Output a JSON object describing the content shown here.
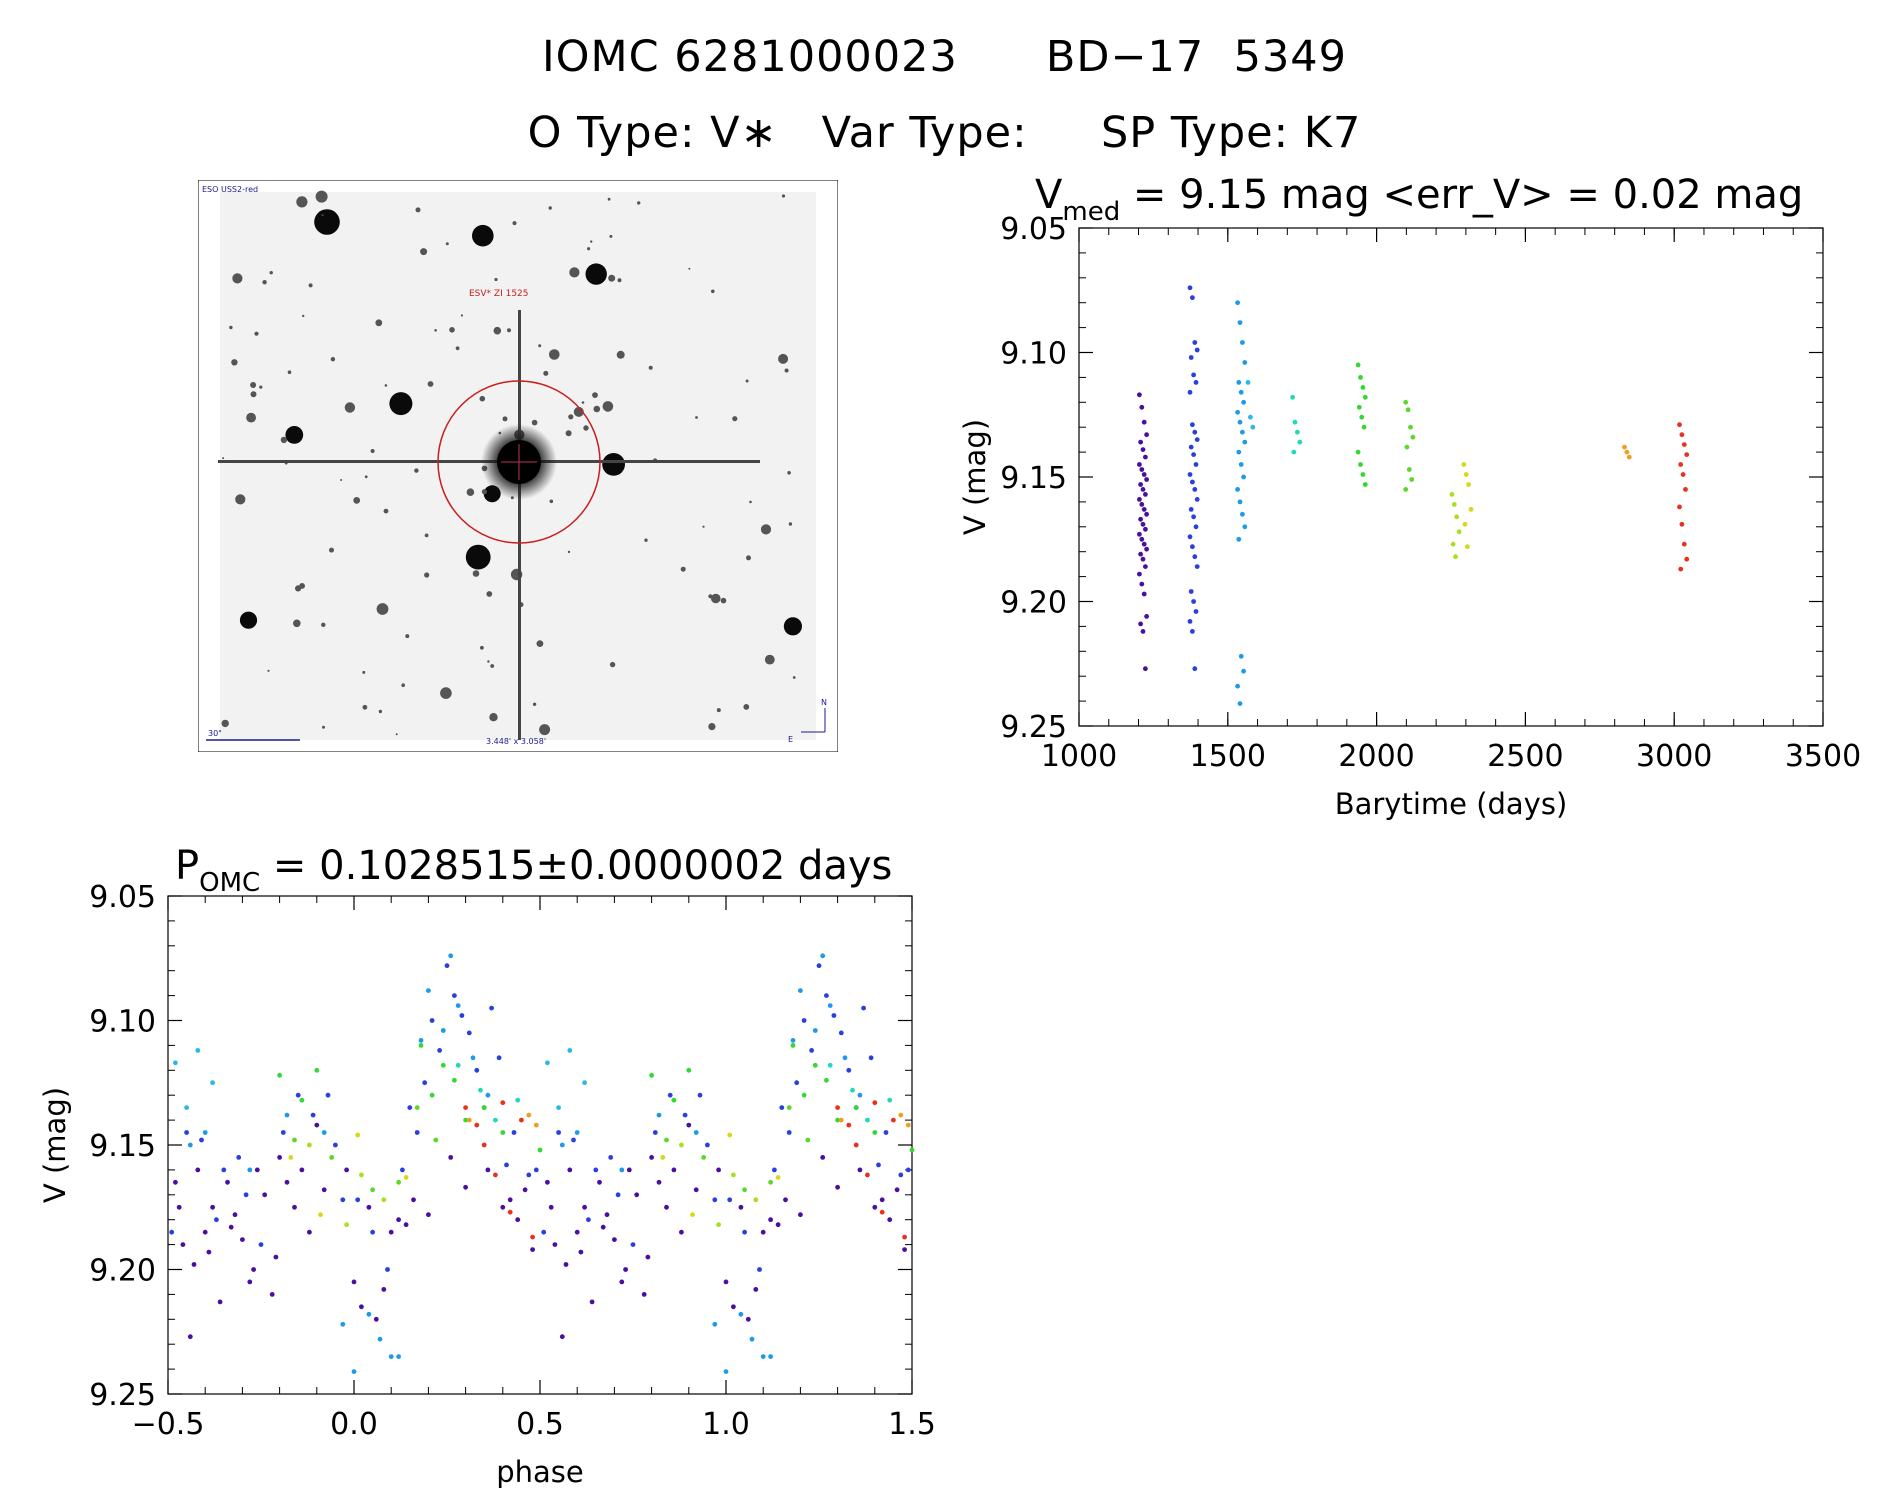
{
  "header": {
    "line1_id": "IOMC 6281000023",
    "line1_name": "BD−17  5349",
    "line2_otype": "O Type: V∗",
    "line2_vartype": "Var Type:",
    "line2_sptype": "SP Type: K7"
  },
  "thumbnail": {
    "survey_label": "ESO USS2-red",
    "object_label": "ESV* ZI 1525",
    "scale_label": "30\"",
    "fov_label": "3.448' x 3.058'",
    "north_label": "N",
    "east_label": "E"
  },
  "chart_data": [
    {
      "type": "scatter",
      "title_main": "V",
      "title_sub": "med",
      "title_rest": " = 9.15 mag <err_V> = 0.02 mag",
      "xlabel": "Barytime (days)",
      "ylabel": "V (mag)",
      "xlim": [
        1000,
        3500
      ],
      "ylim": [
        9.25,
        9.05
      ],
      "yaxis_inverted": true,
      "xticks": [
        "1000",
        "1500",
        "2000",
        "2500",
        "3000",
        "3500"
      ],
      "yticks": [
        "9.05",
        "9.10",
        "9.15",
        "9.20",
        "9.25"
      ],
      "groups": [
        {
          "x": 1215,
          "color": "#4b0fa0",
          "y": [
            9.117,
            9.122,
            9.128,
            9.133,
            9.136,
            9.139,
            9.142,
            9.145,
            9.147,
            9.149,
            9.151,
            9.153,
            9.155,
            9.157,
            9.159,
            9.161,
            9.163,
            9.165,
            9.167,
            9.169,
            9.171,
            9.173,
            9.175,
            9.177,
            9.179,
            9.181,
            9.183,
            9.186,
            9.189,
            9.193,
            9.197,
            9.206,
            9.209,
            9.212,
            9.227
          ]
        },
        {
          "x": 1385,
          "color": "#2a3fe0",
          "y": [
            9.074,
            9.078,
            9.096,
            9.099,
            9.102,
            9.109,
            9.112,
            9.116,
            9.129,
            9.132,
            9.135,
            9.138,
            9.141,
            9.145,
            9.149,
            9.152,
            9.155,
            9.159,
            9.163,
            9.166,
            9.17,
            9.174,
            9.178,
            9.182,
            9.186,
            9.196,
            9.2,
            9.204,
            9.208,
            9.212,
            9.227
          ]
        },
        {
          "x": 1545,
          "color": "#1e9ae8",
          "y": [
            9.08,
            9.088,
            9.096,
            9.104,
            9.112,
            9.116,
            9.12,
            9.124,
            9.128,
            9.132,
            9.136,
            9.14,
            9.145,
            9.15,
            9.155,
            9.16,
            9.165,
            9.17,
            9.175,
            9.222,
            9.228,
            9.234,
            9.241
          ]
        },
        {
          "x": 1580,
          "color": "#2ab8e8",
          "y": [
            9.112,
            9.126,
            9.13
          ]
        },
        {
          "x": 1730,
          "color": "#22d8b8",
          "y": [
            9.118,
            9.128,
            9.132,
            9.136,
            9.14
          ]
        },
        {
          "x": 1950,
          "color": "#33d833",
          "y": [
            9.105,
            9.11,
            9.114,
            9.118,
            9.122,
            9.126,
            9.13,
            9.14,
            9.145,
            9.149,
            9.153
          ]
        },
        {
          "x": 2110,
          "color": "#5bd82a",
          "y": [
            9.12,
            9.123,
            9.13,
            9.134,
            9.138,
            9.147,
            9.151,
            9.155
          ]
        },
        {
          "x": 2265,
          "color": "#a8e020",
          "y": [
            9.157,
            9.161,
            9.166,
            9.172,
            9.177,
            9.182
          ]
        },
        {
          "x": 2305,
          "color": "#d8d818",
          "y": [
            9.145,
            9.149,
            9.153,
            9.163,
            9.169,
            9.178
          ]
        },
        {
          "x": 2845,
          "color": "#f0a020",
          "y": [
            9.138,
            9.14,
            9.142
          ]
        },
        {
          "x": 3030,
          "color": "#e8321e",
          "y": [
            9.129,
            9.133,
            9.137,
            9.141,
            9.145,
            9.149,
            9.155,
            9.162,
            9.169,
            9.177,
            9.183,
            9.187
          ]
        }
      ]
    },
    {
      "type": "scatter",
      "title_main": "P",
      "title_sub": "OMC",
      "title_rest": " = 0.1028515±0.0000002 days",
      "xlabel": "phase",
      "ylabel": "V (mag)",
      "xlim": [
        -0.5,
        1.5
      ],
      "ylim": [
        9.25,
        9.05
      ],
      "yaxis_inverted": true,
      "xticks": [
        "−0.5",
        "0.0",
        "0.5",
        "1.0",
        "1.5"
      ],
      "yticks": [
        "9.05",
        "9.10",
        "9.15",
        "9.20",
        "9.25"
      ],
      "repeat_period": 1,
      "points": [
        [
          -0.48,
          9.165,
          "#4b0fa0"
        ],
        [
          -0.46,
          9.19,
          "#4b0fa0"
        ],
        [
          -0.44,
          9.227,
          "#4b0fa0"
        ],
        [
          -0.42,
          9.16,
          "#4b0fa0"
        ],
        [
          -0.4,
          9.185,
          "#4b0fa0"
        ],
        [
          -0.38,
          9.175,
          "#4b0fa0"
        ],
        [
          -0.36,
          9.213,
          "#4b0fa0"
        ],
        [
          -0.34,
          9.165,
          "#4b0fa0"
        ],
        [
          -0.32,
          9.178,
          "#4b0fa0"
        ],
        [
          -0.3,
          9.188,
          "#4b0fa0"
        ],
        [
          -0.28,
          9.205,
          "#4b0fa0"
        ],
        [
          -0.26,
          9.16,
          "#4b0fa0"
        ],
        [
          -0.24,
          9.17,
          "#4b0fa0"
        ],
        [
          -0.22,
          9.21,
          "#4b0fa0"
        ],
        [
          -0.2,
          9.155,
          "#4b0fa0"
        ],
        [
          -0.18,
          9.165,
          "#4b0fa0"
        ],
        [
          -0.16,
          9.175,
          "#4b0fa0"
        ],
        [
          -0.14,
          9.16,
          "#4b0fa0"
        ],
        [
          -0.12,
          9.185,
          "#4b0fa0"
        ],
        [
          -0.1,
          9.142,
          "#4b0fa0"
        ],
        [
          -0.08,
          9.168,
          "#4b0fa0"
        ],
        [
          -0.02,
          9.16,
          "#4b0fa0"
        ],
        [
          0.0,
          9.205,
          "#4b0fa0"
        ],
        [
          0.04,
          9.175,
          "#4b0fa0"
        ],
        [
          0.08,
          9.208,
          "#4b0fa0"
        ],
        [
          0.12,
          9.18,
          "#4b0fa0"
        ],
        [
          0.16,
          9.172,
          "#4b0fa0"
        ],
        [
          0.2,
          9.178,
          "#4b0fa0"
        ],
        [
          0.26,
          9.155,
          "#4b0fa0"
        ],
        [
          0.3,
          9.167,
          "#4b0fa0"
        ],
        [
          0.36,
          9.16,
          "#4b0fa0"
        ],
        [
          0.4,
          9.175,
          "#4b0fa0"
        ],
        [
          0.44,
          9.18,
          "#4b0fa0"
        ],
        [
          0.48,
          9.192,
          "#4b0fa0"
        ],
        [
          -0.47,
          9.175,
          "#4b0fa0"
        ],
        [
          -0.43,
          9.198,
          "#4b0fa0"
        ],
        [
          -0.39,
          9.193,
          "#4b0fa0"
        ],
        [
          -0.33,
          9.183,
          "#4b0fa0"
        ],
        [
          -0.27,
          9.2,
          "#4b0fa0"
        ],
        [
          -0.21,
          9.195,
          "#4b0fa0"
        ],
        [
          0.02,
          9.215,
          "#4b0fa0"
        ],
        [
          0.06,
          9.22,
          "#4b0fa0"
        ],
        [
          0.1,
          9.185,
          "#4b0fa0"
        ],
        [
          0.14,
          9.182,
          "#4b0fa0"
        ],
        [
          0.42,
          9.172,
          "#4b0fa0"
        ],
        [
          0.46,
          9.168,
          "#4b0fa0"
        ],
        [
          -0.45,
          9.145,
          "#2a3fe0"
        ],
        [
          -0.41,
          9.148,
          "#2a3fe0"
        ],
        [
          -0.37,
          9.18,
          "#2a3fe0"
        ],
        [
          -0.31,
          9.155,
          "#2a3fe0"
        ],
        [
          -0.25,
          9.19,
          "#2a3fe0"
        ],
        [
          -0.19,
          9.145,
          "#2a3fe0"
        ],
        [
          -0.15,
          9.13,
          "#2a3fe0"
        ],
        [
          -0.11,
          9.138,
          "#2a3fe0"
        ],
        [
          -0.07,
          9.13,
          "#2a3fe0"
        ],
        [
          -0.05,
          9.15,
          "#2a3fe0"
        ],
        [
          -0.03,
          9.172,
          "#2a3fe0"
        ],
        [
          0.01,
          9.172,
          "#2a3fe0"
        ],
        [
          0.05,
          9.185,
          "#2a3fe0"
        ],
        [
          0.09,
          9.2,
          "#2a3fe0"
        ],
        [
          0.13,
          9.16,
          "#2a3fe0"
        ],
        [
          0.17,
          9.145,
          "#2a3fe0"
        ],
        [
          0.19,
          9.125,
          "#2a3fe0"
        ],
        [
          0.21,
          9.1,
          "#2a3fe0"
        ],
        [
          0.23,
          9.112,
          "#2a3fe0"
        ],
        [
          0.25,
          9.078,
          "#2a3fe0"
        ],
        [
          0.27,
          9.09,
          "#2a3fe0"
        ],
        [
          0.29,
          9.098,
          "#2a3fe0"
        ],
        [
          0.31,
          9.105,
          "#2a3fe0"
        ],
        [
          0.33,
          9.12,
          "#2a3fe0"
        ],
        [
          0.35,
          9.135,
          "#2a3fe0"
        ],
        [
          0.37,
          9.095,
          "#2a3fe0"
        ],
        [
          0.39,
          9.115,
          "#2a3fe0"
        ],
        [
          0.41,
          9.158,
          "#2a3fe0"
        ],
        [
          0.43,
          9.145,
          "#2a3fe0"
        ],
        [
          0.47,
          9.162,
          "#2a3fe0"
        ],
        [
          0.49,
          9.16,
          "#2a3fe0"
        ],
        [
          -0.49,
          9.185,
          "#2a3fe0"
        ],
        [
          -0.35,
          9.16,
          "#2a3fe0"
        ],
        [
          -0.29,
          9.17,
          "#2a3fe0"
        ],
        [
          0.15,
          9.135,
          "#2a3fe0"
        ],
        [
          -0.44,
          9.15,
          "#1e9ae8"
        ],
        [
          -0.4,
          9.145,
          "#1e9ae8"
        ],
        [
          -0.28,
          9.16,
          "#1e9ae8"
        ],
        [
          -0.18,
          9.138,
          "#1e9ae8"
        ],
        [
          -0.08,
          9.145,
          "#1e9ae8"
        ],
        [
          0.0,
          9.241,
          "#1e9ae8"
        ],
        [
          0.04,
          9.218,
          "#1e9ae8"
        ],
        [
          0.07,
          9.228,
          "#1e9ae8"
        ],
        [
          0.1,
          9.235,
          "#1e9ae8"
        ],
        [
          0.12,
          9.235,
          "#1e9ae8"
        ],
        [
          0.18,
          9.108,
          "#1e9ae8"
        ],
        [
          0.2,
          9.088,
          "#1e9ae8"
        ],
        [
          0.24,
          9.104,
          "#1e9ae8"
        ],
        [
          0.26,
          9.074,
          "#1e9ae8"
        ],
        [
          0.28,
          9.094,
          "#1e9ae8"
        ],
        [
          0.32,
          9.115,
          "#1e9ae8"
        ],
        [
          0.36,
          9.13,
          "#1e9ae8"
        ],
        [
          -0.03,
          9.222,
          "#1e9ae8"
        ],
        [
          -0.48,
          9.117,
          "#2ab8e8"
        ],
        [
          -0.45,
          9.135,
          "#2ab8e8"
        ],
        [
          -0.38,
          9.125,
          "#2ab8e8"
        ],
        [
          -0.42,
          9.112,
          "#2ab8e8"
        ],
        [
          0.28,
          9.118,
          "#22d8b8"
        ],
        [
          0.34,
          9.128,
          "#22d8b8"
        ],
        [
          0.38,
          9.14,
          "#22d8b8"
        ],
        [
          0.44,
          9.132,
          "#22d8b8"
        ],
        [
          -0.2,
          9.122,
          "#33d833"
        ],
        [
          -0.14,
          9.132,
          "#33d833"
        ],
        [
          -0.1,
          9.12,
          "#33d833"
        ],
        [
          0.18,
          9.11,
          "#33d833"
        ],
        [
          0.21,
          9.13,
          "#33d833"
        ],
        [
          0.24,
          9.118,
          "#33d833"
        ],
        [
          0.27,
          9.124,
          "#33d833"
        ],
        [
          0.3,
          9.14,
          "#33d833"
        ],
        [
          0.35,
          9.135,
          "#33d833"
        ],
        [
          0.4,
          9.145,
          "#33d833"
        ],
        [
          0.5,
          9.152,
          "#33d833"
        ],
        [
          -0.16,
          9.148,
          "#5bd82a"
        ],
        [
          -0.06,
          9.155,
          "#5bd82a"
        ],
        [
          0.05,
          9.168,
          "#5bd82a"
        ],
        [
          0.12,
          9.165,
          "#5bd82a"
        ],
        [
          0.17,
          9.135,
          "#5bd82a"
        ],
        [
          0.22,
          9.148,
          "#5bd82a"
        ],
        [
          -0.12,
          9.15,
          "#a8e020"
        ],
        [
          0.02,
          9.162,
          "#a8e020"
        ],
        [
          0.08,
          9.172,
          "#a8e020"
        ],
        [
          -0.02,
          9.182,
          "#a8e020"
        ],
        [
          -0.17,
          9.155,
          "#d8d818"
        ],
        [
          -0.09,
          9.178,
          "#d8d818"
        ],
        [
          0.01,
          9.146,
          "#d8d818"
        ],
        [
          0.14,
          9.163,
          "#d8d818"
        ],
        [
          0.47,
          9.138,
          "#f0a020"
        ],
        [
          0.49,
          9.142,
          "#f0a020"
        ],
        [
          0.31,
          9.14,
          "#f0a020"
        ],
        [
          0.3,
          9.135,
          "#e8321e"
        ],
        [
          0.33,
          9.142,
          "#e8321e"
        ],
        [
          0.35,
          9.15,
          "#e8321e"
        ],
        [
          0.38,
          9.162,
          "#e8321e"
        ],
        [
          0.4,
          9.133,
          "#e8321e"
        ],
        [
          0.42,
          9.177,
          "#e8321e"
        ],
        [
          0.45,
          9.14,
          "#e8321e"
        ],
        [
          0.48,
          9.187,
          "#e8321e"
        ]
      ]
    }
  ]
}
